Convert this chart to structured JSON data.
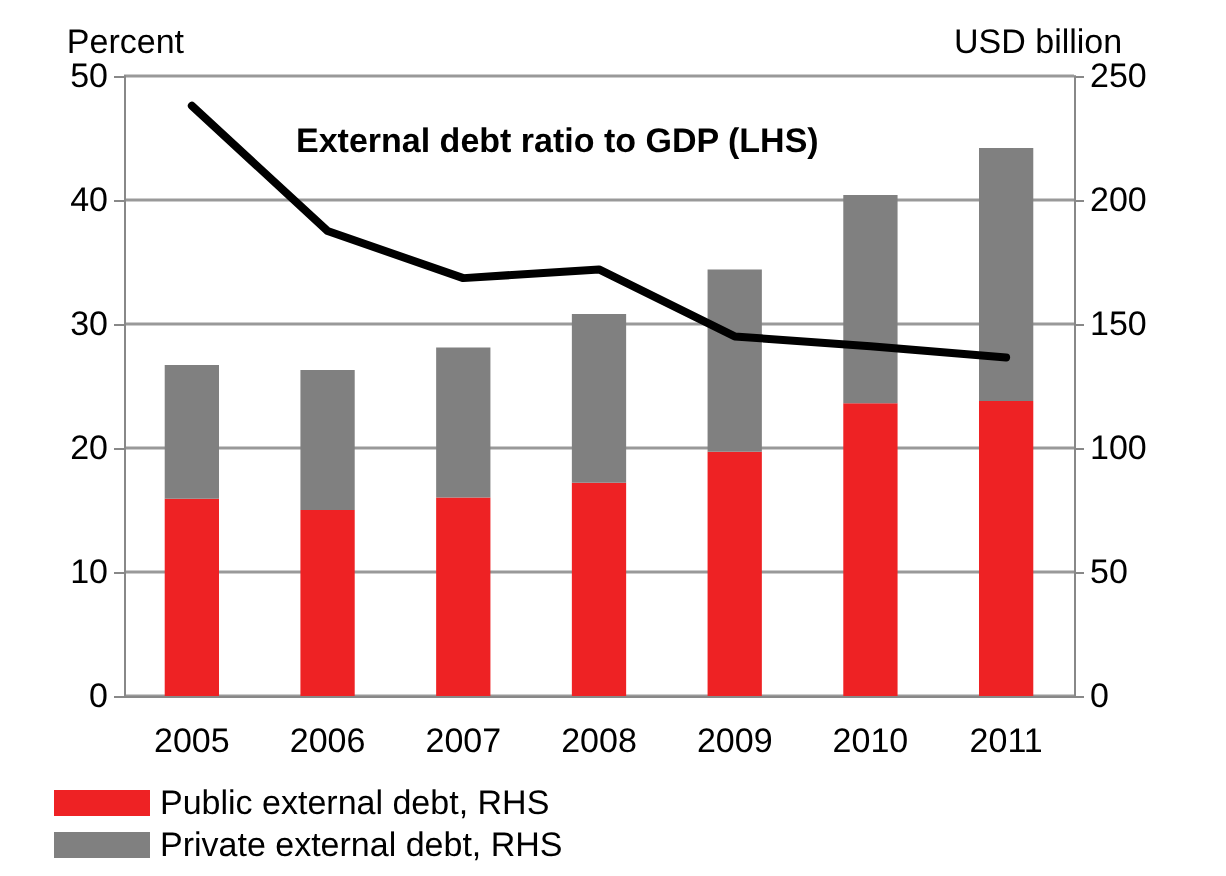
{
  "chart_data": {
    "type": "bar",
    "stacked": true,
    "ylabel": "Percent",
    "y2label": "USD billion",
    "categories": [
      "2005",
      "2006",
      "2007",
      "2008",
      "2009",
      "2010",
      "2011"
    ],
    "series": [
      {
        "name": "Public external debt, RHS",
        "color": "#ee2224",
        "axis": "y2",
        "values": [
          79.5,
          75,
          80,
          86,
          98.5,
          118,
          119
        ]
      },
      {
        "name": "Private external debt, RHS",
        "color": "#808080",
        "axis": "y2",
        "values": [
          54,
          56.5,
          60.5,
          68,
          73.5,
          84,
          102
        ]
      },
      {
        "type": "line",
        "color": "#000000",
        "values": [
          47.6,
          37.5,
          33.7,
          34.4,
          29,
          28.2,
          27.3
        ],
        "marker": "none"
      }
    ],
    "annotations": [
      "External debt ratio to GDP (LHS)"
    ],
    "ylim": [
      0,
      50
    ],
    "yticks": [
      0,
      10,
      20,
      30,
      40,
      50
    ],
    "y2lim": [
      0,
      250
    ],
    "y2ticks": [
      0,
      50,
      100,
      150,
      200,
      250
    ],
    "grid": "y",
    "legend": "bottom left",
    "line_style": "solid"
  }
}
